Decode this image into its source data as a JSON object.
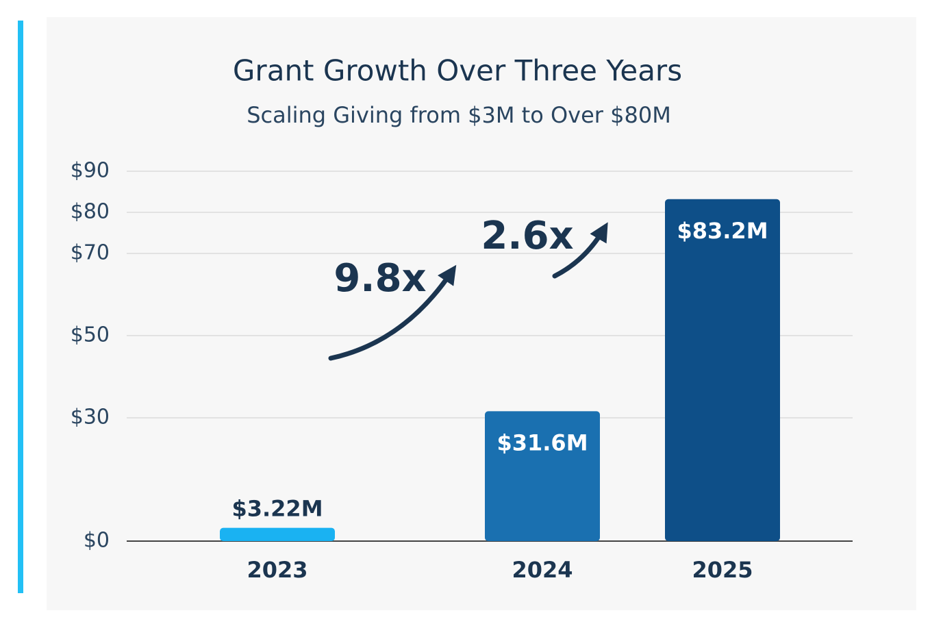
{
  "chart_data": {
    "type": "bar",
    "title": "Grant Growth Over Three Years",
    "subtitle": "Scaling Giving from $3M to Over $80M",
    "categories": [
      "2023",
      "2024",
      "2025"
    ],
    "values": [
      3.22,
      31.6,
      83.2
    ],
    "value_labels": [
      "$3.22M",
      "$31.6M",
      "$83.2M"
    ],
    "colors": [
      "#1ab2f2",
      "#1a70b0",
      "#0e4f88"
    ],
    "ylim": [
      0,
      90
    ],
    "yticks": [
      {
        "value": 0,
        "label": "$0"
      },
      {
        "value": 30,
        "label": "$30"
      },
      {
        "value": 50,
        "label": "$50"
      },
      {
        "value": 70,
        "label": "$70"
      },
      {
        "value": 80,
        "label": "$80"
      },
      {
        "value": 90,
        "label": "$90"
      }
    ],
    "grid": true,
    "annotations": [
      "9.8x",
      "2.6x"
    ]
  }
}
